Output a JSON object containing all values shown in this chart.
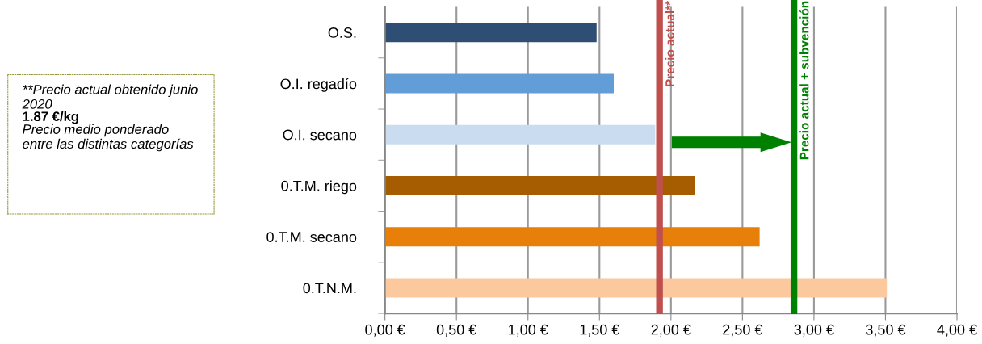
{
  "chart_data": {
    "type": "bar",
    "orientation": "horizontal",
    "categories": [
      "O.S.",
      "O.I. regadío",
      "O.I. secano",
      "0.T.M. riego",
      "0.T.M. secano",
      "0.T.N.M."
    ],
    "values": [
      1.48,
      1.6,
      1.89,
      2.17,
      2.62,
      3.51
    ],
    "colors": [
      "#2e4e74",
      "#629dd8",
      "#c9dcf0",
      "#a65c00",
      "#e87f08",
      "#fbc99d"
    ],
    "xlim": [
      0,
      4
    ],
    "xticks": [
      {
        "value": 0,
        "label": "0,00 €"
      },
      {
        "value": 0.5,
        "label": "0,50 €"
      },
      {
        "value": 1,
        "label": "1,00 €"
      },
      {
        "value": 1.5,
        "label": "1,50 €"
      },
      {
        "value": 2,
        "label": "2,00 €"
      },
      {
        "value": 2.5,
        "label": "2,50 €"
      },
      {
        "value": 3,
        "label": "3,00 €"
      },
      {
        "value": 3.5,
        "label": "3,50 €"
      },
      {
        "value": 4,
        "label": "4,00 €"
      }
    ],
    "grid": "x",
    "ref_lines": [
      {
        "axis": "x",
        "value": 1.92,
        "label": "Precio actual**",
        "color": "#c0504d"
      },
      {
        "axis": "x",
        "value": 2.86,
        "label": "Precio actual + subvención",
        "color": "#008000"
      }
    ],
    "annotations": [
      "**Precio actual obtenido junio 2020",
      "1.87 €/kg",
      "Precio medio ponderado entre las distintas categorías"
    ]
  }
}
